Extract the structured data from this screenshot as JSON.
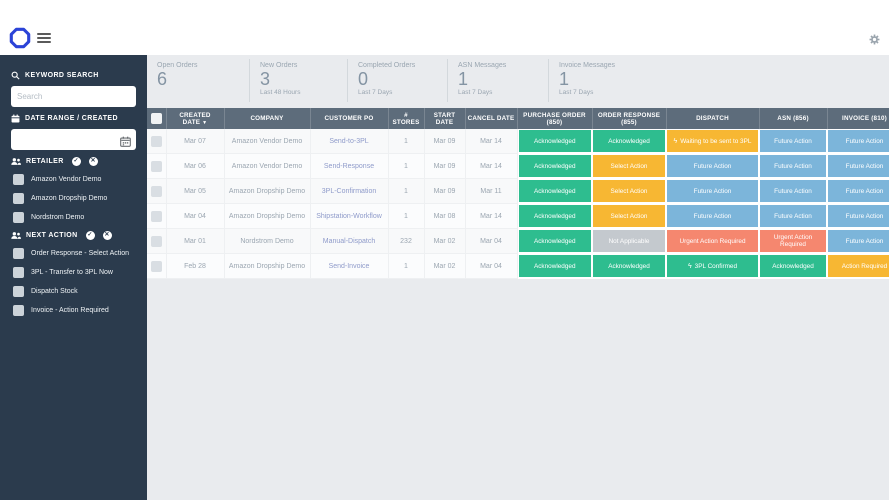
{
  "colors": {
    "sidebar_bg": "#2b3b4d",
    "table_header_bg": "#5d6c7b",
    "status_green": "#2ebd8f",
    "status_orange": "#f7b733",
    "status_blue": "#7cb5da",
    "status_salmon": "#f5876f",
    "status_gray": "#c4c9ce",
    "link_blue": "#8f9bca",
    "logo_blue": "#2b43d7"
  },
  "icons": {
    "logo": "octagon-outline",
    "menu": "hamburger",
    "settings": "gear",
    "search": "magnifier",
    "calendar": "calendar",
    "retailer": "users",
    "next_action": "users",
    "select_all": "check-circle",
    "clear_all": "clear-circle",
    "bolt": "ϟ",
    "sort_desc": "▼"
  },
  "sidebar": {
    "search": {
      "label": "KEYWORD SEARCH",
      "placeholder": "Search",
      "value": ""
    },
    "date": {
      "label": "DATE RANGE / CREATED",
      "value": ""
    },
    "retailer": {
      "label": "RETAILER",
      "items": [
        {
          "label": "Amazon Vendor Demo",
          "checked": false
        },
        {
          "label": "Amazon Dropship Demo",
          "checked": false
        },
        {
          "label": "Nordstrom Demo",
          "checked": false
        }
      ]
    },
    "next_action": {
      "label": "NEXT ACTION",
      "items": [
        {
          "label": "Order Response - Select Action",
          "checked": false
        },
        {
          "label": "3PL - Transfer to 3PL Now",
          "checked": false
        },
        {
          "label": "Dispatch Stock",
          "checked": false
        },
        {
          "label": "Invoice - Action Required",
          "checked": false
        }
      ]
    }
  },
  "stats": [
    {
      "label": "Open Orders",
      "value": "6",
      "sub": ""
    },
    {
      "label": "New Orders",
      "value": "3",
      "sub": "Last 48 Hours"
    },
    {
      "label": "Completed Orders",
      "value": "0",
      "sub": "Last 7 Days"
    },
    {
      "label": "ASN Messages",
      "value": "1",
      "sub": "Last 7 Days"
    },
    {
      "label": "Invoice Messages",
      "value": "1",
      "sub": "Last 7 Days"
    }
  ],
  "table": {
    "columns": [
      {
        "label": "",
        "type": "checkbox"
      },
      {
        "label": "CREATED DATE",
        "sort": "desc"
      },
      {
        "label": "COMPANY"
      },
      {
        "label": "CUSTOMER PO"
      },
      {
        "label": "# STORES"
      },
      {
        "label": "START DATE"
      },
      {
        "label": "CANCEL DATE"
      },
      {
        "label": "PURCHASE ORDER (850)"
      },
      {
        "label": "ORDER RESPONSE (855)"
      },
      {
        "label": "DISPATCH"
      },
      {
        "label": "ASN (856)"
      },
      {
        "label": "INVOICE (810)"
      }
    ],
    "rows": [
      {
        "created": "Mar 07",
        "company": "Amazon Vendor Demo",
        "po": "Send-to-3PL",
        "stores": "1",
        "start": "Mar 09",
        "cancel": "Mar 14",
        "statuses": [
          {
            "label": "Acknowledged",
            "color": "green"
          },
          {
            "label": "Acknowledged",
            "color": "green"
          },
          {
            "label": "Waiting to be sent to 3PL",
            "color": "orange",
            "bolt": true
          },
          {
            "label": "Future Action",
            "color": "blue"
          },
          {
            "label": "Future Action",
            "color": "blue"
          }
        ]
      },
      {
        "created": "Mar 06",
        "company": "Amazon Vendor Demo",
        "po": "Send-Response",
        "stores": "1",
        "start": "Mar 09",
        "cancel": "Mar 14",
        "statuses": [
          {
            "label": "Acknowledged",
            "color": "green"
          },
          {
            "label": "Select Action",
            "color": "orange"
          },
          {
            "label": "Future Action",
            "color": "blue"
          },
          {
            "label": "Future Action",
            "color": "blue"
          },
          {
            "label": "Future Action",
            "color": "blue"
          }
        ]
      },
      {
        "created": "Mar 05",
        "company": "Amazon Dropship Demo",
        "po": "3PL-Confirmation",
        "stores": "1",
        "start": "Mar 09",
        "cancel": "Mar 11",
        "statuses": [
          {
            "label": "Acknowledged",
            "color": "green"
          },
          {
            "label": "Select Action",
            "color": "orange"
          },
          {
            "label": "Future Action",
            "color": "blue"
          },
          {
            "label": "Future Action",
            "color": "blue"
          },
          {
            "label": "Future Action",
            "color": "blue"
          }
        ]
      },
      {
        "created": "Mar 04",
        "company": "Amazon Dropship Demo",
        "po": "Shipstation-Workflow",
        "stores": "1",
        "start": "Mar 08",
        "cancel": "Mar 14",
        "statuses": [
          {
            "label": "Acknowledged",
            "color": "green"
          },
          {
            "label": "Select Action",
            "color": "orange"
          },
          {
            "label": "Future Action",
            "color": "blue"
          },
          {
            "label": "Future Action",
            "color": "blue"
          },
          {
            "label": "Future Action",
            "color": "blue"
          }
        ]
      },
      {
        "created": "Mar 01",
        "company": "Nordstrom Demo",
        "po": "Manual-Dispatch",
        "stores": "232",
        "start": "Mar 02",
        "cancel": "Mar 04",
        "statuses": [
          {
            "label": "Acknowledged",
            "color": "green"
          },
          {
            "label": "Not Applicable",
            "color": "gray"
          },
          {
            "label": "Urgent Action Required",
            "color": "salmon"
          },
          {
            "label": "Urgent Action Required",
            "color": "salmon"
          },
          {
            "label": "Future Action",
            "color": "blue"
          }
        ]
      },
      {
        "created": "Feb 28",
        "company": "Amazon Dropship Demo",
        "po": "Send-Invoice",
        "stores": "1",
        "start": "Mar 02",
        "cancel": "Mar 04",
        "statuses": [
          {
            "label": "Acknowledged",
            "color": "green"
          },
          {
            "label": "Acknowledged",
            "color": "green"
          },
          {
            "label": "3PL Confirmed",
            "color": "green",
            "bolt": true
          },
          {
            "label": "Acknowledged",
            "color": "green"
          },
          {
            "label": "Action Required",
            "color": "orange"
          }
        ]
      }
    ]
  }
}
